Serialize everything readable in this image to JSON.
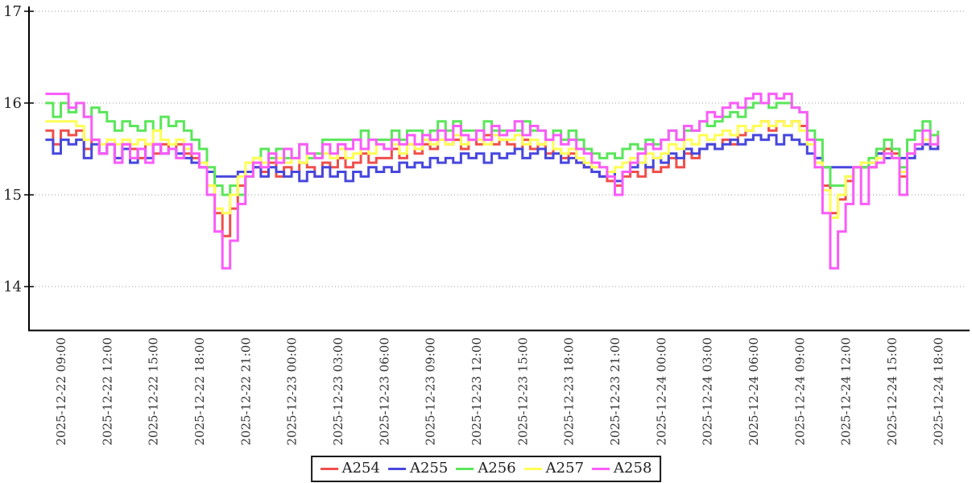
{
  "chart_data": {
    "type": "line",
    "title": "",
    "xlabel": "",
    "ylabel": "",
    "grid": "dotted-horizontal",
    "legend_position": "bottom-center",
    "axis_color": "#000000",
    "gridline_color": "#999999",
    "tick_label_color": "#333333",
    "y_ticks": [
      17,
      16,
      15,
      14
    ],
    "ylim": [
      13.53,
      17.04
    ],
    "x_start": "2025-12-22 08:00",
    "x_step_minutes": 30,
    "x_tick_labels": [
      "2025-12-22 09:00",
      "2025-12-22 12:00",
      "2025-12-22 15:00",
      "2025-12-22 18:00",
      "2025-12-22 21:00",
      "2025-12-23 00:00",
      "2025-12-23 03:00",
      "2025-12-23 06:00",
      "2025-12-23 09:00",
      "2025-12-23 12:00",
      "2025-12-23 15:00",
      "2025-12-23 18:00",
      "2025-12-23 21:00",
      "2025-12-24 00:00",
      "2025-12-24 03:00",
      "2025-12-24 06:00",
      "2025-12-24 09:00",
      "2025-12-24 12:00",
      "2025-12-24 15:00",
      "2025-12-24 18:00"
    ],
    "series": [
      {
        "name": "A254",
        "color": "#ef4f4b",
        "values": [
          15.7,
          15.55,
          15.7,
          15.65,
          15.7,
          15.5,
          15.6,
          15.45,
          15.55,
          15.4,
          15.55,
          15.5,
          15.4,
          15.55,
          15.45,
          15.55,
          15.5,
          15.55,
          15.45,
          15.4,
          15.3,
          15.1,
          14.8,
          14.55,
          14.85,
          15.1,
          15.25,
          15.3,
          15.25,
          15.35,
          15.2,
          15.3,
          15.25,
          15.35,
          15.3,
          15.2,
          15.35,
          15.3,
          15.4,
          15.3,
          15.35,
          15.45,
          15.35,
          15.4,
          15.4,
          15.5,
          15.4,
          15.55,
          15.45,
          15.55,
          15.5,
          15.6,
          15.55,
          15.6,
          15.5,
          15.6,
          15.55,
          15.65,
          15.55,
          15.6,
          15.55,
          15.5,
          15.6,
          15.5,
          15.55,
          15.45,
          15.5,
          15.4,
          15.45,
          15.35,
          15.3,
          15.25,
          15.2,
          15.15,
          15.1,
          15.2,
          15.25,
          15.2,
          15.3,
          15.25,
          15.3,
          15.4,
          15.3,
          15.45,
          15.4,
          15.5,
          15.55,
          15.5,
          15.6,
          15.55,
          15.65,
          15.7,
          15.75,
          15.8,
          15.7,
          15.8,
          15.75,
          15.8,
          15.75,
          15.6,
          15.4,
          15.1,
          14.8,
          14.95,
          15.15,
          15.3,
          15.3,
          15.3,
          15.45,
          15.5,
          15.45,
          15.2,
          15.45,
          15.5,
          15.55,
          15.5,
          15.55
        ]
      },
      {
        "name": "A255",
        "color": "#4747de",
        "values": [
          15.6,
          15.45,
          15.6,
          15.55,
          15.6,
          15.4,
          15.55,
          15.45,
          15.55,
          15.4,
          15.5,
          15.35,
          15.5,
          15.4,
          15.55,
          15.45,
          15.5,
          15.45,
          15.4,
          15.35,
          15.3,
          15.25,
          15.2,
          15.2,
          15.2,
          15.25,
          15.25,
          15.3,
          15.2,
          15.3,
          15.25,
          15.2,
          15.25,
          15.15,
          15.25,
          15.2,
          15.3,
          15.2,
          15.25,
          15.15,
          15.25,
          15.2,
          15.3,
          15.25,
          15.3,
          15.25,
          15.35,
          15.3,
          15.35,
          15.3,
          15.4,
          15.35,
          15.4,
          15.35,
          15.45,
          15.4,
          15.45,
          15.35,
          15.45,
          15.4,
          15.45,
          15.5,
          15.4,
          15.45,
          15.5,
          15.4,
          15.45,
          15.35,
          15.4,
          15.35,
          15.3,
          15.25,
          15.2,
          15.25,
          15.15,
          15.25,
          15.3,
          15.35,
          15.3,
          15.4,
          15.35,
          15.45,
          15.4,
          15.5,
          15.45,
          15.5,
          15.55,
          15.5,
          15.55,
          15.6,
          15.55,
          15.6,
          15.65,
          15.6,
          15.65,
          15.55,
          15.65,
          15.6,
          15.55,
          15.45,
          15.4,
          15.3,
          15.3,
          15.3,
          15.3,
          15.3,
          15.3,
          15.35,
          15.45,
          15.4,
          15.4,
          15.4,
          15.4,
          15.5,
          15.55,
          15.5,
          15.55
        ]
      },
      {
        "name": "A256",
        "color": "#5ae65a",
        "values": [
          16.0,
          15.85,
          16.0,
          15.9,
          16.0,
          15.85,
          15.95,
          15.9,
          15.8,
          15.7,
          15.8,
          15.75,
          15.7,
          15.8,
          15.7,
          15.85,
          15.75,
          15.8,
          15.7,
          15.6,
          15.5,
          15.3,
          15.1,
          15.0,
          15.1,
          15.0,
          15.2,
          15.4,
          15.5,
          15.4,
          15.5,
          15.4,
          15.4,
          15.55,
          15.4,
          15.45,
          15.6,
          15.6,
          15.6,
          15.6,
          15.6,
          15.7,
          15.6,
          15.6,
          15.6,
          15.7,
          15.6,
          15.7,
          15.7,
          15.6,
          15.7,
          15.8,
          15.7,
          15.8,
          15.7,
          15.7,
          15.7,
          15.8,
          15.7,
          15.7,
          15.7,
          15.7,
          15.8,
          15.7,
          15.7,
          15.6,
          15.7,
          15.6,
          15.7,
          15.6,
          15.5,
          15.45,
          15.4,
          15.45,
          15.4,
          15.5,
          15.55,
          15.5,
          15.6,
          15.55,
          15.6,
          15.7,
          15.6,
          15.7,
          15.7,
          15.8,
          15.75,
          15.8,
          15.85,
          15.9,
          15.85,
          15.95,
          16.0,
          16.0,
          15.95,
          16.0,
          16.0,
          15.95,
          15.9,
          15.7,
          15.6,
          15.3,
          15.1,
          15.1,
          15.2,
          15.3,
          15.3,
          15.4,
          15.5,
          15.6,
          15.5,
          15.3,
          15.6,
          15.7,
          15.8,
          15.65,
          15.7
        ]
      },
      {
        "name": "A257",
        "color": "#ffff55",
        "values": [
          15.8,
          15.8,
          15.8,
          15.8,
          15.75,
          15.6,
          15.6,
          15.55,
          15.6,
          15.55,
          15.6,
          15.55,
          15.6,
          15.55,
          15.7,
          15.6,
          15.55,
          15.6,
          15.5,
          15.45,
          15.35,
          15.1,
          14.85,
          14.8,
          15.0,
          15.2,
          15.35,
          15.4,
          15.35,
          15.45,
          15.4,
          15.35,
          15.4,
          15.35,
          15.45,
          15.4,
          15.45,
          15.4,
          15.5,
          15.4,
          15.45,
          15.5,
          15.45,
          15.55,
          15.5,
          15.55,
          15.45,
          15.55,
          15.5,
          15.6,
          15.55,
          15.6,
          15.55,
          15.65,
          15.55,
          15.6,
          15.6,
          15.55,
          15.65,
          15.6,
          15.6,
          15.65,
          15.55,
          15.6,
          15.55,
          15.6,
          15.5,
          15.45,
          15.5,
          15.4,
          15.35,
          15.3,
          15.3,
          15.25,
          15.3,
          15.35,
          15.4,
          15.35,
          15.45,
          15.4,
          15.45,
          15.55,
          15.5,
          15.6,
          15.55,
          15.65,
          15.6,
          15.65,
          15.7,
          15.65,
          15.75,
          15.7,
          15.75,
          15.8,
          15.75,
          15.8,
          15.75,
          15.8,
          15.7,
          15.55,
          15.35,
          15.05,
          14.75,
          15.0,
          15.2,
          15.3,
          15.35,
          15.35,
          15.4,
          15.45,
          15.4,
          15.25,
          15.45,
          15.55,
          15.6,
          15.55,
          15.65
        ]
      },
      {
        "name": "A258",
        "color": "#fa5bfa",
        "values": [
          16.1,
          16.1,
          16.1,
          15.95,
          16.0,
          15.85,
          15.6,
          15.45,
          15.55,
          15.35,
          15.55,
          15.4,
          15.5,
          15.35,
          15.55,
          15.45,
          15.5,
          15.4,
          15.55,
          15.45,
          15.3,
          15.0,
          14.6,
          14.2,
          14.5,
          14.9,
          15.2,
          15.35,
          15.3,
          15.45,
          15.35,
          15.5,
          15.4,
          15.55,
          15.45,
          15.4,
          15.55,
          15.45,
          15.55,
          15.5,
          15.6,
          15.5,
          15.6,
          15.55,
          15.5,
          15.6,
          15.55,
          15.65,
          15.55,
          15.65,
          15.6,
          15.7,
          15.6,
          15.75,
          15.65,
          15.6,
          15.7,
          15.6,
          15.75,
          15.65,
          15.7,
          15.8,
          15.65,
          15.75,
          15.7,
          15.6,
          15.65,
          15.55,
          15.6,
          15.5,
          15.45,
          15.35,
          15.3,
          15.2,
          15.0,
          15.25,
          15.35,
          15.45,
          15.55,
          15.5,
          15.6,
          15.7,
          15.6,
          15.75,
          15.7,
          15.8,
          15.9,
          15.85,
          15.95,
          16.0,
          15.95,
          16.05,
          16.1,
          16.0,
          16.1,
          16.05,
          16.1,
          15.95,
          15.9,
          15.6,
          15.3,
          14.8,
          14.2,
          14.6,
          14.9,
          15.3,
          14.9,
          15.3,
          15.35,
          15.45,
          15.4,
          15.0,
          15.45,
          15.55,
          15.7,
          15.55,
          15.65
        ]
      }
    ]
  }
}
